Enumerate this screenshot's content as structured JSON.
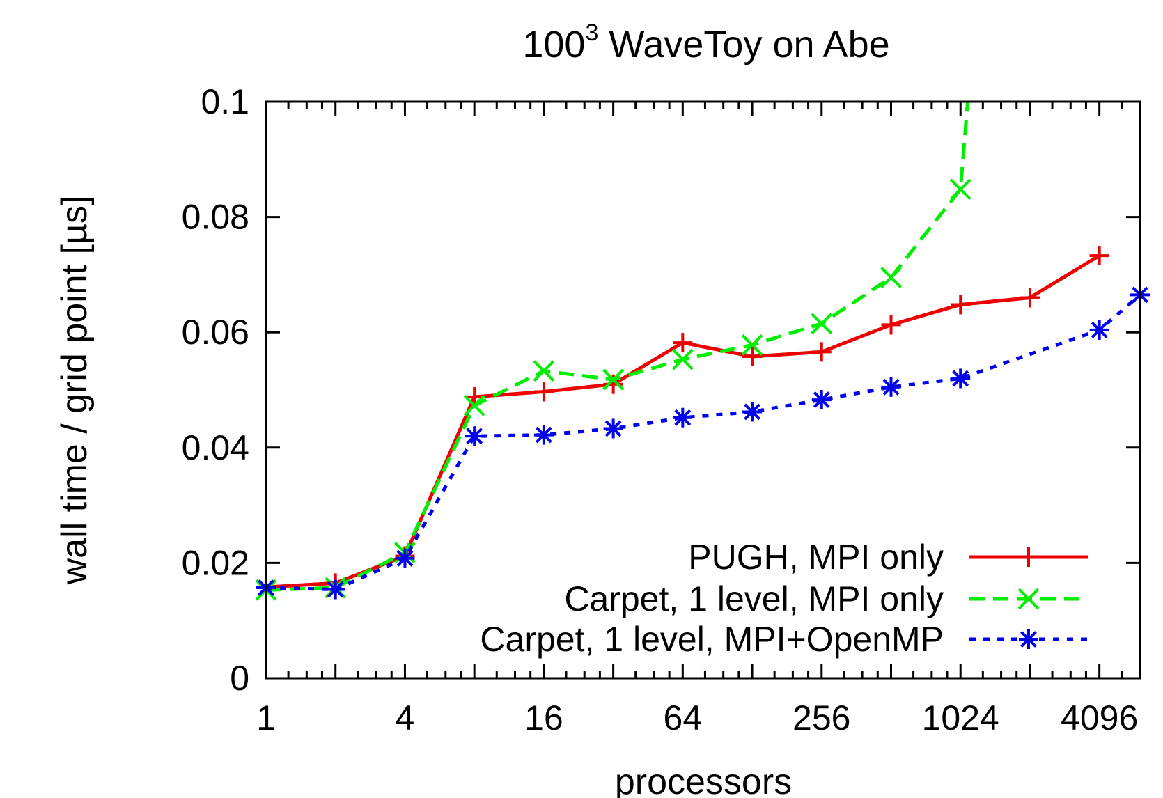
{
  "chart_data": {
    "type": "line",
    "title": {
      "base": "100",
      "sup": "3",
      "rest": " WaveToy on Abe"
    },
    "xlabel": "processors",
    "ylabel": "wall time / grid point [µs]",
    "x_scale": "log2",
    "xlim": [
      1,
      6144
    ],
    "ylim": [
      0,
      0.1
    ],
    "x_ticks": [
      {
        "value": 1,
        "label": "1"
      },
      {
        "value": 4,
        "label": "4"
      },
      {
        "value": 16,
        "label": "16"
      },
      {
        "value": 64,
        "label": "64"
      },
      {
        "value": 256,
        "label": "256"
      },
      {
        "value": 1024,
        "label": "1024"
      },
      {
        "value": 4096,
        "label": "4096"
      }
    ],
    "y_ticks": [
      {
        "value": 0,
        "label": "0"
      },
      {
        "value": 0.02,
        "label": "0.02"
      },
      {
        "value": 0.04,
        "label": "0.04"
      },
      {
        "value": 0.06,
        "label": "0.06"
      },
      {
        "value": 0.08,
        "label": "0.08"
      },
      {
        "value": 0.1,
        "label": "0.1"
      }
    ],
    "grid": false,
    "legend_position": "bottom-right",
    "series": [
      {
        "name": "PUGH, MPI only",
        "color": "#ee0000",
        "dash": "solid",
        "marker": "plus",
        "points": [
          [
            1,
            0.0158
          ],
          [
            2,
            0.0165
          ],
          [
            4,
            0.0212
          ],
          [
            8,
            0.0488
          ],
          [
            16,
            0.0497
          ],
          [
            32,
            0.051
          ],
          [
            64,
            0.0582
          ],
          [
            128,
            0.0558
          ],
          [
            256,
            0.0566
          ],
          [
            512,
            0.0613
          ],
          [
            1024,
            0.0648
          ],
          [
            2048,
            0.066
          ],
          [
            4096,
            0.0733
          ]
        ]
      },
      {
        "name": "Carpet, 1 level, MPI only",
        "color": "#00ee00",
        "dash": "dashed",
        "marker": "cross",
        "points": [
          [
            1,
            0.0153
          ],
          [
            2,
            0.0157
          ],
          [
            4,
            0.0218
          ],
          [
            8,
            0.0473
          ],
          [
            16,
            0.0533
          ],
          [
            32,
            0.0518
          ],
          [
            64,
            0.0553
          ],
          [
            128,
            0.0578
          ],
          [
            256,
            0.0615
          ],
          [
            512,
            0.0695
          ],
          [
            1024,
            0.0848
          ],
          [
            1100,
            0.1
          ]
        ],
        "markers_hidden_last": 1
      },
      {
        "name": "Carpet, 1 level, MPI+OpenMP",
        "color": "#0000ee",
        "dash": "dotted",
        "marker": "star",
        "points": [
          [
            1,
            0.0157
          ],
          [
            2,
            0.0154
          ],
          [
            4,
            0.0208
          ],
          [
            8,
            0.042
          ],
          [
            16,
            0.0422
          ],
          [
            32,
            0.0433
          ],
          [
            64,
            0.0452
          ],
          [
            128,
            0.0462
          ],
          [
            256,
            0.0483
          ],
          [
            512,
            0.0505
          ],
          [
            1024,
            0.052
          ],
          [
            4096,
            0.0604
          ],
          [
            6144,
            0.0665
          ]
        ]
      }
    ]
  }
}
